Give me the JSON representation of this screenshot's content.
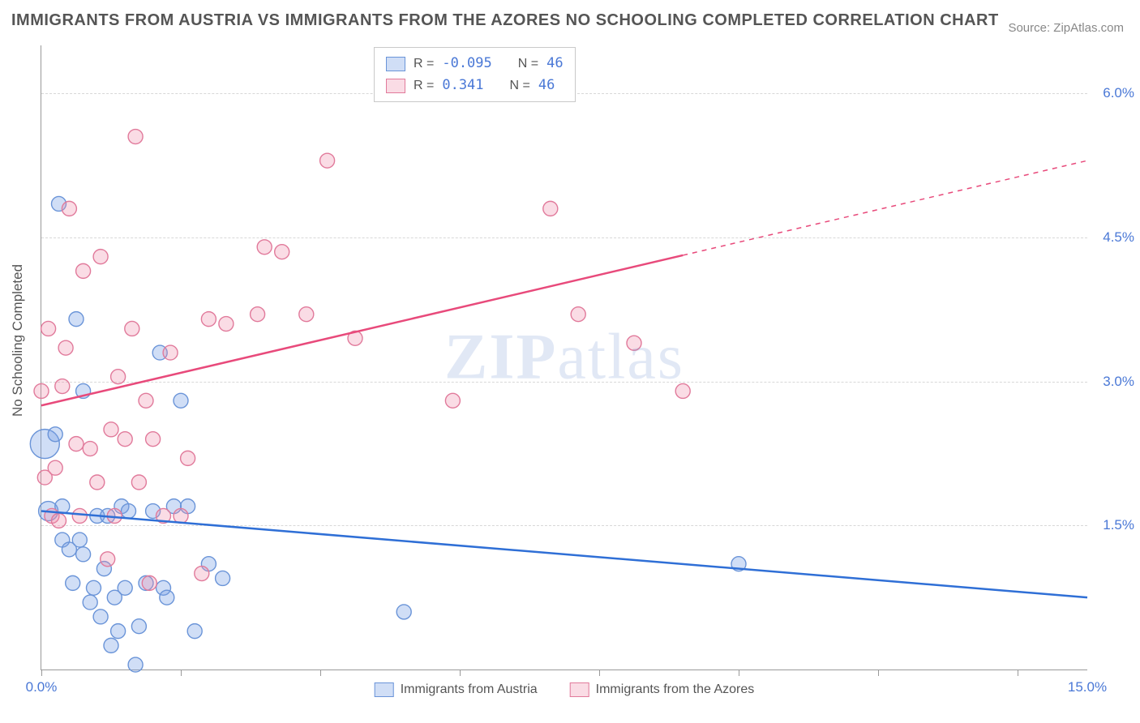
{
  "title": "IMMIGRANTS FROM AUSTRIA VS IMMIGRANTS FROM THE AZORES NO SCHOOLING COMPLETED CORRELATION CHART",
  "source": "Source: ZipAtlas.com",
  "ylabel": "No Schooling Completed",
  "watermark_prefix": "ZIP",
  "watermark_suffix": "atlas",
  "chart": {
    "type": "scatter",
    "background_color": "#ffffff",
    "grid_color": "#d8d8d8",
    "axis_color": "#999999",
    "text_color": "#555555",
    "tick_label_color": "#4a78d6",
    "xlim": [
      0.0,
      15.0
    ],
    "ylim": [
      0.0,
      6.5
    ],
    "xtick_positions": [
      0.0,
      2.0,
      4.0,
      6.0,
      8.0,
      10.0,
      12.0,
      14.0
    ],
    "xtick_labels": {
      "0": "0.0%",
      "15": "15.0%"
    },
    "ytick_positions": [
      1.5,
      3.0,
      4.5,
      6.0
    ],
    "ytick_labels": [
      "1.5%",
      "3.0%",
      "4.5%",
      "6.0%"
    ],
    "series": [
      {
        "name": "Immigrants from Austria",
        "color_fill": "rgba(120,160,230,0.35)",
        "color_stroke": "#6a94d8",
        "trend_color": "#2f6fd6",
        "trend": {
          "x1": 0.0,
          "y1": 1.65,
          "x2": 15.0,
          "y2": 0.75,
          "solid_until": 15.0
        },
        "R": "-0.095",
        "N": "46",
        "points": [
          {
            "x": 0.05,
            "y": 2.35,
            "r": 18
          },
          {
            "x": 0.1,
            "y": 1.65,
            "r": 12
          },
          {
            "x": 0.2,
            "y": 2.45,
            "r": 9
          },
          {
            "x": 0.25,
            "y": 4.85,
            "r": 9
          },
          {
            "x": 0.3,
            "y": 1.35,
            "r": 9
          },
          {
            "x": 0.3,
            "y": 1.7,
            "r": 9
          },
          {
            "x": 0.4,
            "y": 1.25,
            "r": 9
          },
          {
            "x": 0.45,
            "y": 0.9,
            "r": 9
          },
          {
            "x": 0.5,
            "y": 3.65,
            "r": 9
          },
          {
            "x": 0.55,
            "y": 1.35,
            "r": 9
          },
          {
            "x": 0.6,
            "y": 1.2,
            "r": 9
          },
          {
            "x": 0.6,
            "y": 2.9,
            "r": 9
          },
          {
            "x": 0.7,
            "y": 0.7,
            "r": 9
          },
          {
            "x": 0.75,
            "y": 0.85,
            "r": 9
          },
          {
            "x": 0.8,
            "y": 1.6,
            "r": 9
          },
          {
            "x": 0.85,
            "y": 0.55,
            "r": 9
          },
          {
            "x": 0.9,
            "y": 1.05,
            "r": 9
          },
          {
            "x": 0.95,
            "y": 1.6,
            "r": 9
          },
          {
            "x": 1.0,
            "y": 0.25,
            "r": 9
          },
          {
            "x": 1.05,
            "y": 0.75,
            "r": 9
          },
          {
            "x": 1.1,
            "y": 0.4,
            "r": 9
          },
          {
            "x": 1.15,
            "y": 1.7,
            "r": 9
          },
          {
            "x": 1.2,
            "y": 0.85,
            "r": 9
          },
          {
            "x": 1.25,
            "y": 1.65,
            "r": 9
          },
          {
            "x": 1.35,
            "y": 0.05,
            "r": 9
          },
          {
            "x": 1.4,
            "y": 0.45,
            "r": 9
          },
          {
            "x": 1.5,
            "y": 0.9,
            "r": 9
          },
          {
            "x": 1.6,
            "y": 1.65,
            "r": 9
          },
          {
            "x": 1.7,
            "y": 3.3,
            "r": 9
          },
          {
            "x": 1.75,
            "y": 0.85,
            "r": 9
          },
          {
            "x": 1.8,
            "y": 0.75,
            "r": 9
          },
          {
            "x": 1.9,
            "y": 1.7,
            "r": 9
          },
          {
            "x": 2.0,
            "y": 2.8,
            "r": 9
          },
          {
            "x": 2.1,
            "y": 1.7,
            "r": 9
          },
          {
            "x": 2.2,
            "y": 0.4,
            "r": 9
          },
          {
            "x": 2.4,
            "y": 1.1,
            "r": 9
          },
          {
            "x": 2.6,
            "y": 0.95,
            "r": 9
          },
          {
            "x": 5.2,
            "y": 0.6,
            "r": 9
          },
          {
            "x": 10.0,
            "y": 1.1,
            "r": 9
          }
        ]
      },
      {
        "name": "Immigrants from the Azores",
        "color_fill": "rgba(240,140,170,0.3)",
        "color_stroke": "#e17a9b",
        "trend_color": "#e84a7b",
        "trend": {
          "x1": 0.0,
          "y1": 2.75,
          "x2": 15.0,
          "y2": 5.3,
          "solid_until": 9.2
        },
        "R": " 0.341",
        "N": "46",
        "points": [
          {
            "x": 0.0,
            "y": 2.9,
            "r": 9
          },
          {
            "x": 0.05,
            "y": 2.0,
            "r": 9
          },
          {
            "x": 0.1,
            "y": 3.55,
            "r": 9
          },
          {
            "x": 0.15,
            "y": 1.6,
            "r": 9
          },
          {
            "x": 0.2,
            "y": 2.1,
            "r": 9
          },
          {
            "x": 0.25,
            "y": 1.55,
            "r": 9
          },
          {
            "x": 0.3,
            "y": 2.95,
            "r": 9
          },
          {
            "x": 0.35,
            "y": 3.35,
            "r": 9
          },
          {
            "x": 0.4,
            "y": 4.8,
            "r": 9
          },
          {
            "x": 0.5,
            "y": 2.35,
            "r": 9
          },
          {
            "x": 0.55,
            "y": 1.6,
            "r": 9
          },
          {
            "x": 0.6,
            "y": 4.15,
            "r": 9
          },
          {
            "x": 0.7,
            "y": 2.3,
            "r": 9
          },
          {
            "x": 0.8,
            "y": 1.95,
            "r": 9
          },
          {
            "x": 0.85,
            "y": 4.3,
            "r": 9
          },
          {
            "x": 0.95,
            "y": 1.15,
            "r": 9
          },
          {
            "x": 1.0,
            "y": 2.5,
            "r": 9
          },
          {
            "x": 1.05,
            "y": 1.6,
            "r": 9
          },
          {
            "x": 1.1,
            "y": 3.05,
            "r": 9
          },
          {
            "x": 1.2,
            "y": 2.4,
            "r": 9
          },
          {
            "x": 1.3,
            "y": 3.55,
            "r": 9
          },
          {
            "x": 1.35,
            "y": 5.55,
            "r": 9
          },
          {
            "x": 1.4,
            "y": 1.95,
            "r": 9
          },
          {
            "x": 1.5,
            "y": 2.8,
            "r": 9
          },
          {
            "x": 1.55,
            "y": 0.9,
            "r": 9
          },
          {
            "x": 1.6,
            "y": 2.4,
            "r": 9
          },
          {
            "x": 1.75,
            "y": 1.6,
            "r": 9
          },
          {
            "x": 1.85,
            "y": 3.3,
            "r": 9
          },
          {
            "x": 2.0,
            "y": 1.6,
            "r": 9
          },
          {
            "x": 2.1,
            "y": 2.2,
            "r": 9
          },
          {
            "x": 2.3,
            "y": 1.0,
            "r": 9
          },
          {
            "x": 2.4,
            "y": 3.65,
            "r": 9
          },
          {
            "x": 2.65,
            "y": 3.6,
            "r": 9
          },
          {
            "x": 3.1,
            "y": 3.7,
            "r": 9
          },
          {
            "x": 3.2,
            "y": 4.4,
            "r": 9
          },
          {
            "x": 3.45,
            "y": 4.35,
            "r": 9
          },
          {
            "x": 3.8,
            "y": 3.7,
            "r": 9
          },
          {
            "x": 4.1,
            "y": 5.3,
            "r": 9
          },
          {
            "x": 4.5,
            "y": 3.45,
            "r": 9
          },
          {
            "x": 5.9,
            "y": 2.8,
            "r": 9
          },
          {
            "x": 7.3,
            "y": 4.8,
            "r": 9
          },
          {
            "x": 7.7,
            "y": 3.7,
            "r": 9
          },
          {
            "x": 8.5,
            "y": 3.4,
            "r": 9
          },
          {
            "x": 9.2,
            "y": 2.9,
            "r": 9
          }
        ]
      }
    ]
  }
}
